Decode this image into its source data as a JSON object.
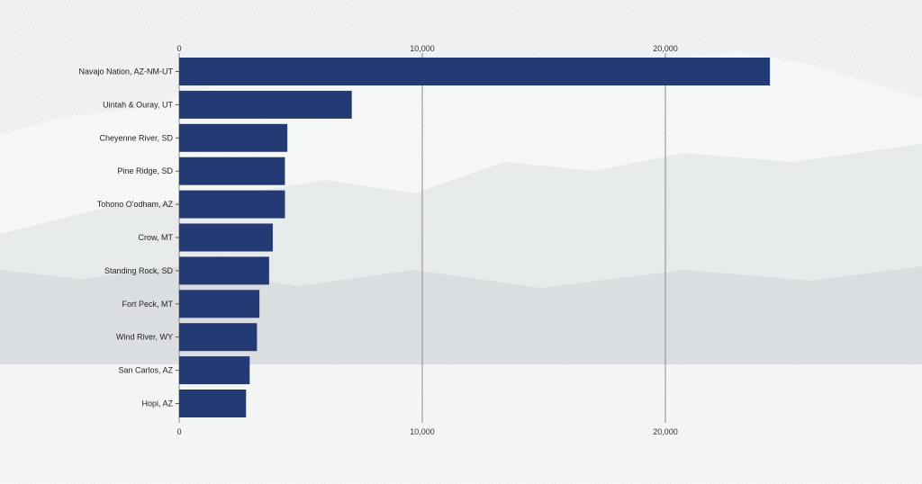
{
  "chart_data": {
    "type": "bar",
    "orientation": "horizontal",
    "categories": [
      "Navajo Nation, AZ-NM-UT",
      "Uintah & Ouray, UT",
      "Cheyenne River, SD",
      "Pine Ridge, SD",
      "Tohono O'odham, AZ",
      "Crow, MT",
      "Standing Rock, SD",
      "Fort Peck, MT",
      "Wind River, WY",
      "San Carlos, AZ",
      "Hopi, AZ"
    ],
    "values": [
      24300,
      7100,
      4450,
      4350,
      4350,
      3850,
      3700,
      3300,
      3200,
      2900,
      2750
    ],
    "xlim": [
      0,
      30000
    ],
    "ticks": [
      0,
      10000,
      20000
    ],
    "tick_labels": [
      "0",
      "10,000",
      "20,000"
    ],
    "axis_positions": [
      "top",
      "bottom"
    ],
    "grid": true,
    "bar_color": "#243a74",
    "grid_color": "#8a8a8a"
  }
}
